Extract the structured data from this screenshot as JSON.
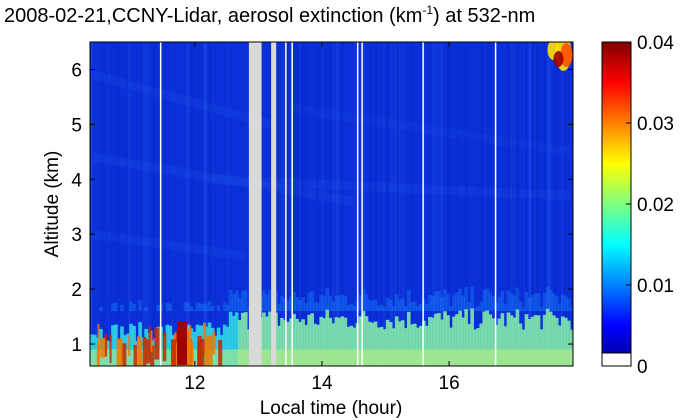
{
  "chart_data": {
    "type": "heatmap",
    "title": {
      "prefix": "2008-02-21,CCNY-Lidar, aerosol extinction (km",
      "superscript": "-1",
      "suffix": ") at 532-nm"
    },
    "xlabel": "Local time (hour)",
    "ylabel": "Altitude (km)",
    "xlim": [
      10.35,
      17.95
    ],
    "ylim": [
      0.6,
      6.5
    ],
    "xticks": [
      12,
      14,
      16
    ],
    "yticks": [
      1,
      2,
      3,
      4,
      5,
      6
    ],
    "colorbar": {
      "range": [
        0,
        0.04
      ],
      "ticks": [
        "0",
        "0.01",
        "0.02",
        "0.03",
        "0.04"
      ],
      "colormap": "jet"
    },
    "no_data_intervals_hours": [
      [
        12.85,
        13.05
      ],
      [
        13.2,
        13.28
      ]
    ],
    "gap_lines_hours": [
      11.45,
      13.42,
      13.52,
      14.55,
      14.62,
      15.58,
      16.72
    ],
    "profile": {
      "description_values": [
        {
          "altitude_km": 0.8,
          "extinction_km-1": 0.025
        },
        {
          "altitude_km": 1.0,
          "extinction_km-1": 0.018
        },
        {
          "altitude_km": 1.5,
          "extinction_km-1": 0.008
        },
        {
          "altitude_km": 2.0,
          "extinction_km-1": 0.005
        },
        {
          "altitude_km": 3.0,
          "extinction_km-1": 0.004
        },
        {
          "altitude_km": 5.0,
          "extinction_km-1": 0.003
        },
        {
          "altitude_km": 6.0,
          "extinction_km-1": 0.003
        }
      ],
      "cloud_high_extinction_near": {
        "time_hours": 17.8,
        "altitude_km": 6.3,
        "extinction_km-1": 0.04
      }
    },
    "colors": {
      "no_data": "#d9d9d9",
      "gap_line": "#ffffff"
    }
  }
}
